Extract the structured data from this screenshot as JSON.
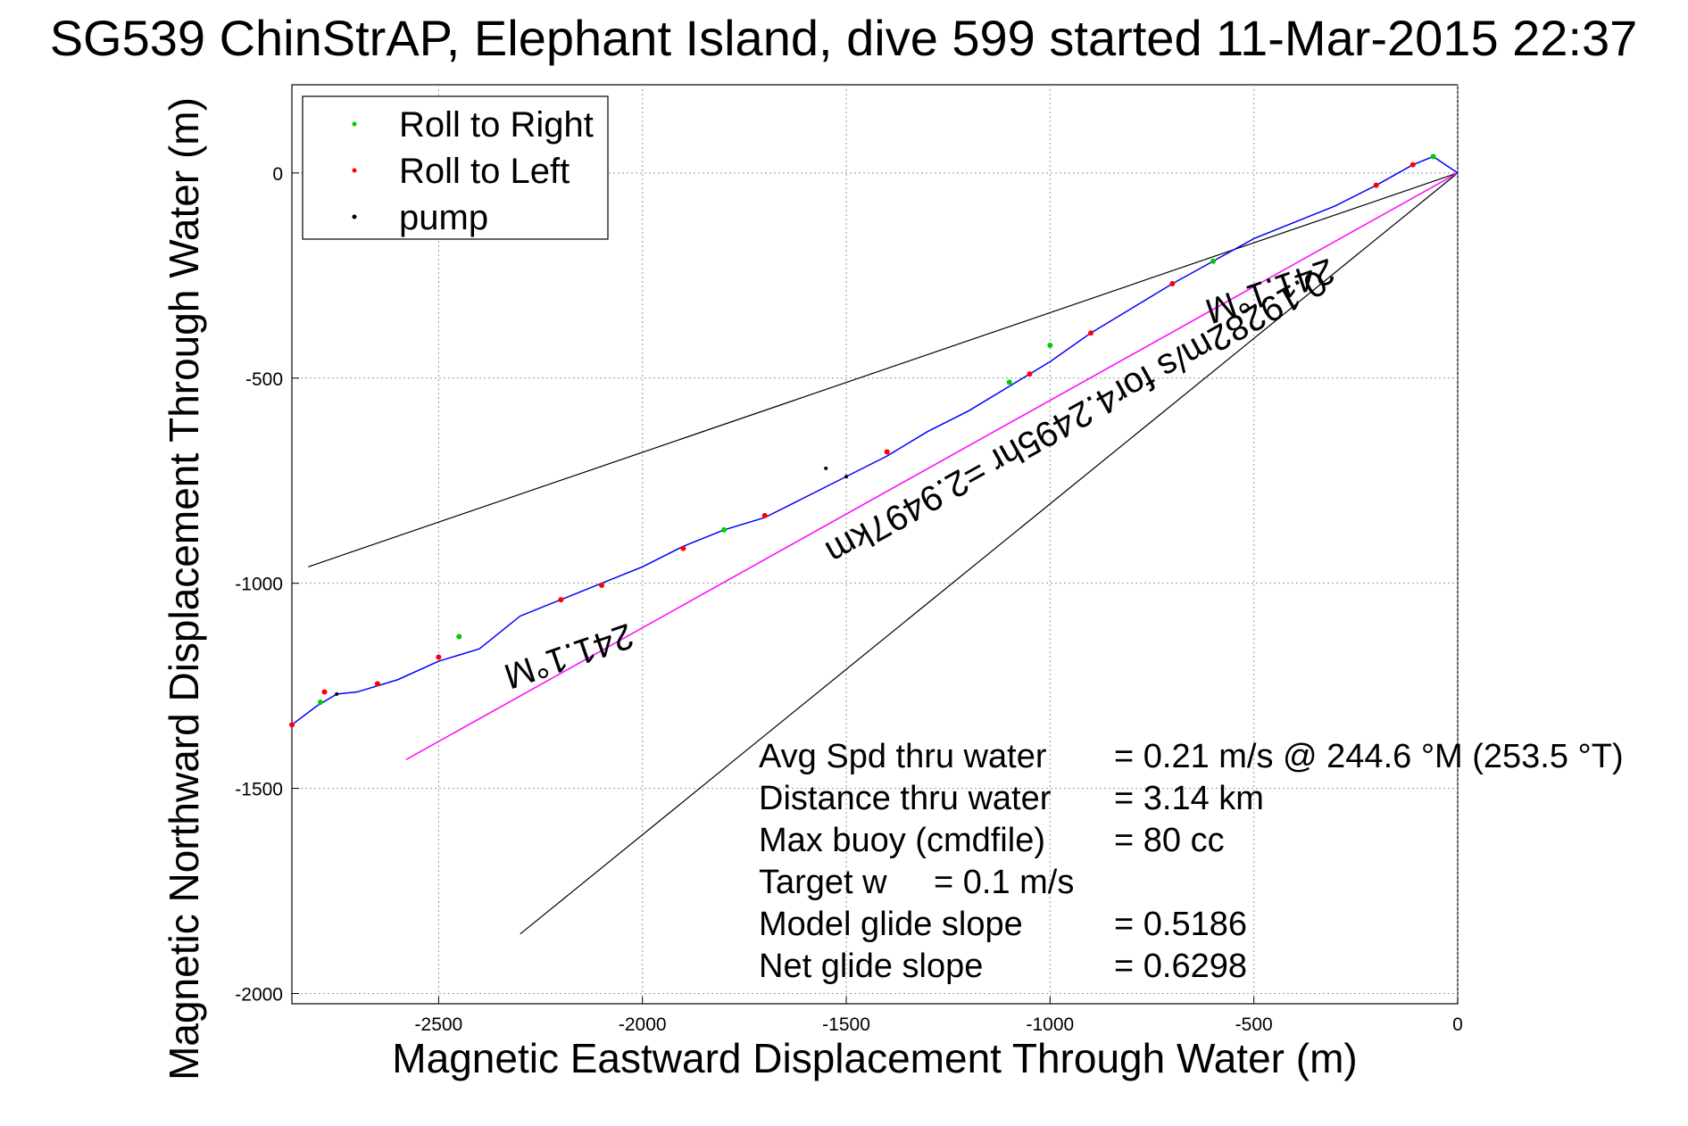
{
  "chart_data": {
    "type": "line",
    "title": "SG539 ChinStrAP, Elephant Island, dive 599 started 11-Mar-2015 22:37",
    "xlabel": "Magnetic Eastward Displacement Through Water (m)",
    "ylabel": "Magnetic Northward Displacement Through Water (m)",
    "xlim": [
      -2860,
      0
    ],
    "ylim": [
      -2025,
      215
    ],
    "xticks": [
      -2500,
      -2000,
      -1500,
      -1000,
      -500,
      0
    ],
    "yticks": [
      0,
      -500,
      -1000,
      -1500,
      -2000
    ],
    "xtick_labels": [
      "-2500",
      "-2000",
      "-1500",
      "-1000",
      "-500",
      "0"
    ],
    "ytick_labels": [
      "0",
      "-500",
      "-1000",
      "-1500",
      "-2000"
    ],
    "grid": true,
    "legend_position": "top-left",
    "legend": [
      {
        "label": "Roll to Right",
        "color": "#00cc00"
      },
      {
        "label": "Roll to Left",
        "color": "#ff0000"
      },
      {
        "label": "pump",
        "color": "#000000"
      }
    ],
    "colors": {
      "track": "#0000ff",
      "roll_right": "#00cc00",
      "roll_left": "#ff0000",
      "pump": "#000000",
      "course_line": "#ff00ff",
      "bound_lines": "#000000"
    },
    "track": [
      [
        0,
        0
      ],
      [
        -60,
        40
      ],
      [
        -110,
        20
      ],
      [
        -200,
        -30
      ],
      [
        -300,
        -80
      ],
      [
        -400,
        -120
      ],
      [
        -500,
        -160
      ],
      [
        -600,
        -215
      ],
      [
        -700,
        -270
      ],
      [
        -800,
        -330
      ],
      [
        -900,
        -390
      ],
      [
        -1000,
        -460
      ],
      [
        -1100,
        -520
      ],
      [
        -1200,
        -580
      ],
      [
        -1300,
        -630
      ],
      [
        -1400,
        -690
      ],
      [
        -1500,
        -740
      ],
      [
        -1600,
        -790
      ],
      [
        -1700,
        -840
      ],
      [
        -1800,
        -870
      ],
      [
        -1900,
        -910
      ],
      [
        -2000,
        -960
      ],
      [
        -2100,
        -1000
      ],
      [
        -2200,
        -1040
      ],
      [
        -2300,
        -1080
      ],
      [
        -2400,
        -1160
      ],
      [
        -2500,
        -1190
      ],
      [
        -2600,
        -1235
      ],
      [
        -2700,
        -1265
      ],
      [
        -2750,
        -1270
      ],
      [
        -2800,
        -1300
      ],
      [
        -2860,
        -1345
      ]
    ],
    "roll_right_points": [
      [
        -60,
        40
      ],
      [
        -600,
        -215
      ],
      [
        -1000,
        -420
      ],
      [
        -1100,
        -510
      ],
      [
        -1800,
        -870
      ],
      [
        -2450,
        -1130
      ],
      [
        -2790,
        -1290
      ]
    ],
    "roll_left_points": [
      [
        -110,
        20
      ],
      [
        -200,
        -30
      ],
      [
        -700,
        -270
      ],
      [
        -900,
        -390
      ],
      [
        -1050,
        -490
      ],
      [
        -1400,
        -680
      ],
      [
        -1700,
        -835
      ],
      [
        -1900,
        -915
      ],
      [
        -2100,
        -1005
      ],
      [
        -2200,
        -1040
      ],
      [
        -2500,
        -1180
      ],
      [
        -2650,
        -1245
      ],
      [
        -2780,
        -1265
      ],
      [
        -2860,
        -1345
      ]
    ],
    "pump_points": [
      [
        -1500,
        -740
      ],
      [
        -1550,
        -720
      ],
      [
        -2750,
        -1270
      ]
    ],
    "course_line": [
      [
        0,
        0
      ],
      [
        -2580,
        -1430
      ]
    ],
    "bound_lines": [
      [
        [
          0,
          0
        ],
        [
          -2820,
          -960
        ]
      ],
      [
        [
          0,
          0
        ],
        [
          -2300,
          -1855
        ]
      ]
    ],
    "line_labels": {
      "upper_heading": "241.1°M",
      "lower_heading": "241.1°M",
      "course": "0.19282m/s for4.2495hr =2.9497km"
    },
    "annotations": [
      {
        "label": "Avg Spd thru water",
        "value": "=  0.21 m/s @ 244.6 °M (253.5 °T)"
      },
      {
        "label": "Distance thru water",
        "value": "=  3.14 km"
      },
      {
        "label": "Max buoy (cmdfile)",
        "value": "= 80 cc"
      },
      {
        "label": "Target w",
        "value": "= 0.1 m/s"
      },
      {
        "label": "Model glide slope",
        "value": "= 0.5186"
      },
      {
        "label": "Net glide slope",
        "value": "= 0.6298"
      }
    ]
  }
}
